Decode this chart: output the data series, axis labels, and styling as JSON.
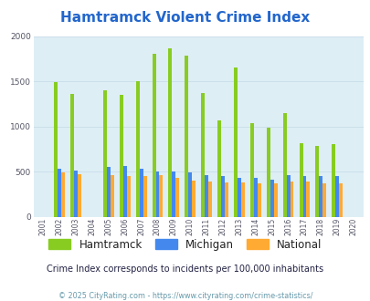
{
  "title": "Hamtramck Violent Crime Index",
  "years": [
    2001,
    2002,
    2003,
    2004,
    2005,
    2006,
    2007,
    2008,
    2009,
    2010,
    2011,
    2012,
    2013,
    2014,
    2015,
    2016,
    2017,
    2018,
    2019,
    2020
  ],
  "hamtramck": [
    0,
    1490,
    1360,
    0,
    1400,
    1350,
    1500,
    1800,
    1860,
    1780,
    1370,
    1070,
    1650,
    1040,
    990,
    1150,
    810,
    780,
    800,
    0
  ],
  "michigan": [
    0,
    535,
    510,
    0,
    550,
    560,
    530,
    500,
    500,
    495,
    460,
    455,
    435,
    435,
    415,
    465,
    450,
    455,
    450,
    0
  ],
  "national": [
    0,
    495,
    475,
    0,
    465,
    455,
    455,
    460,
    435,
    395,
    385,
    375,
    375,
    365,
    370,
    385,
    385,
    370,
    365,
    0
  ],
  "hamtramck_color": "#88cc22",
  "michigan_color": "#4488ee",
  "national_color": "#ffaa33",
  "bg_color": "#deeef5",
  "ylim": [
    0,
    2000
  ],
  "yticks": [
    0,
    500,
    1000,
    1500,
    2000
  ],
  "subtitle": "Crime Index corresponds to incidents per 100,000 inhabitants",
  "footer": "© 2025 CityRating.com - https://www.cityrating.com/crime-statistics/",
  "title_color": "#2266cc",
  "subtitle_color": "#222244",
  "footer_color": "#6699aa",
  "legend_text_color": "#222222",
  "legend_labels": [
    "Hamtramck",
    "Michigan",
    "National"
  ]
}
